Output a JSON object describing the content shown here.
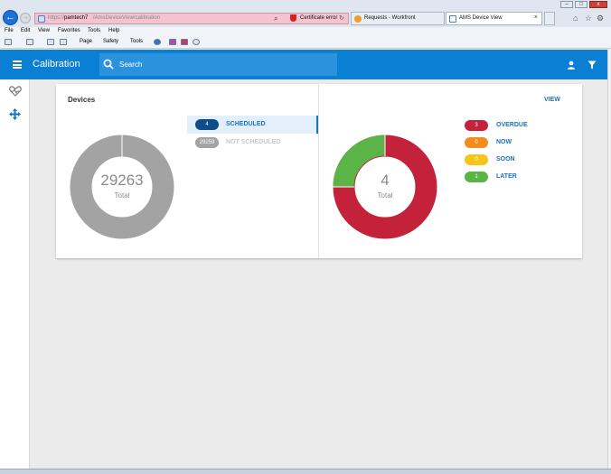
{
  "browser": {
    "address": {
      "prefix": "https://",
      "host": "pamtech7",
      "path": "/AmsDeviceView/calibration",
      "cert_error": "Certificate error"
    },
    "tabs": [
      {
        "label": "Requests - Workfront"
      },
      {
        "label": "AMS Device View",
        "close": "×"
      }
    ],
    "menu": [
      "File",
      "Edit",
      "View",
      "Favorites",
      "Tools",
      "Help"
    ],
    "command_bar": [
      "Page",
      "Safety",
      "Tools"
    ]
  },
  "header": {
    "title": "Calibration",
    "search_placeholder": "Search"
  },
  "card": {
    "title": "Devices",
    "view_link": "VIEW",
    "left_donut": {
      "total": "29263",
      "caption": "Total"
    },
    "right_donut": {
      "total": "4",
      "caption": "Total"
    },
    "schedule_legend": [
      {
        "count": "4",
        "label": "SCHEDULED",
        "color": "#0f4c8a",
        "label_color": "#1a73c4"
      },
      {
        "count": "29259",
        "label": "NOT SCHEDULED",
        "color": "#a3a3a3",
        "label_color": "#c8c8c8"
      }
    ],
    "status_legend": [
      {
        "count": "3",
        "label": "OVERDUE",
        "color": "#c4213b"
      },
      {
        "count": "0",
        "label": "NOW",
        "color": "#f28c1e"
      },
      {
        "count": "0",
        "label": "SOON",
        "color": "#f5c518"
      },
      {
        "count": "1",
        "label": "LATER",
        "color": "#5bb546"
      }
    ]
  },
  "colors": {
    "accent": "#0a7fd3",
    "donut_gray": "#a3a3a3",
    "donut_dark": "#8c8c8c"
  }
}
